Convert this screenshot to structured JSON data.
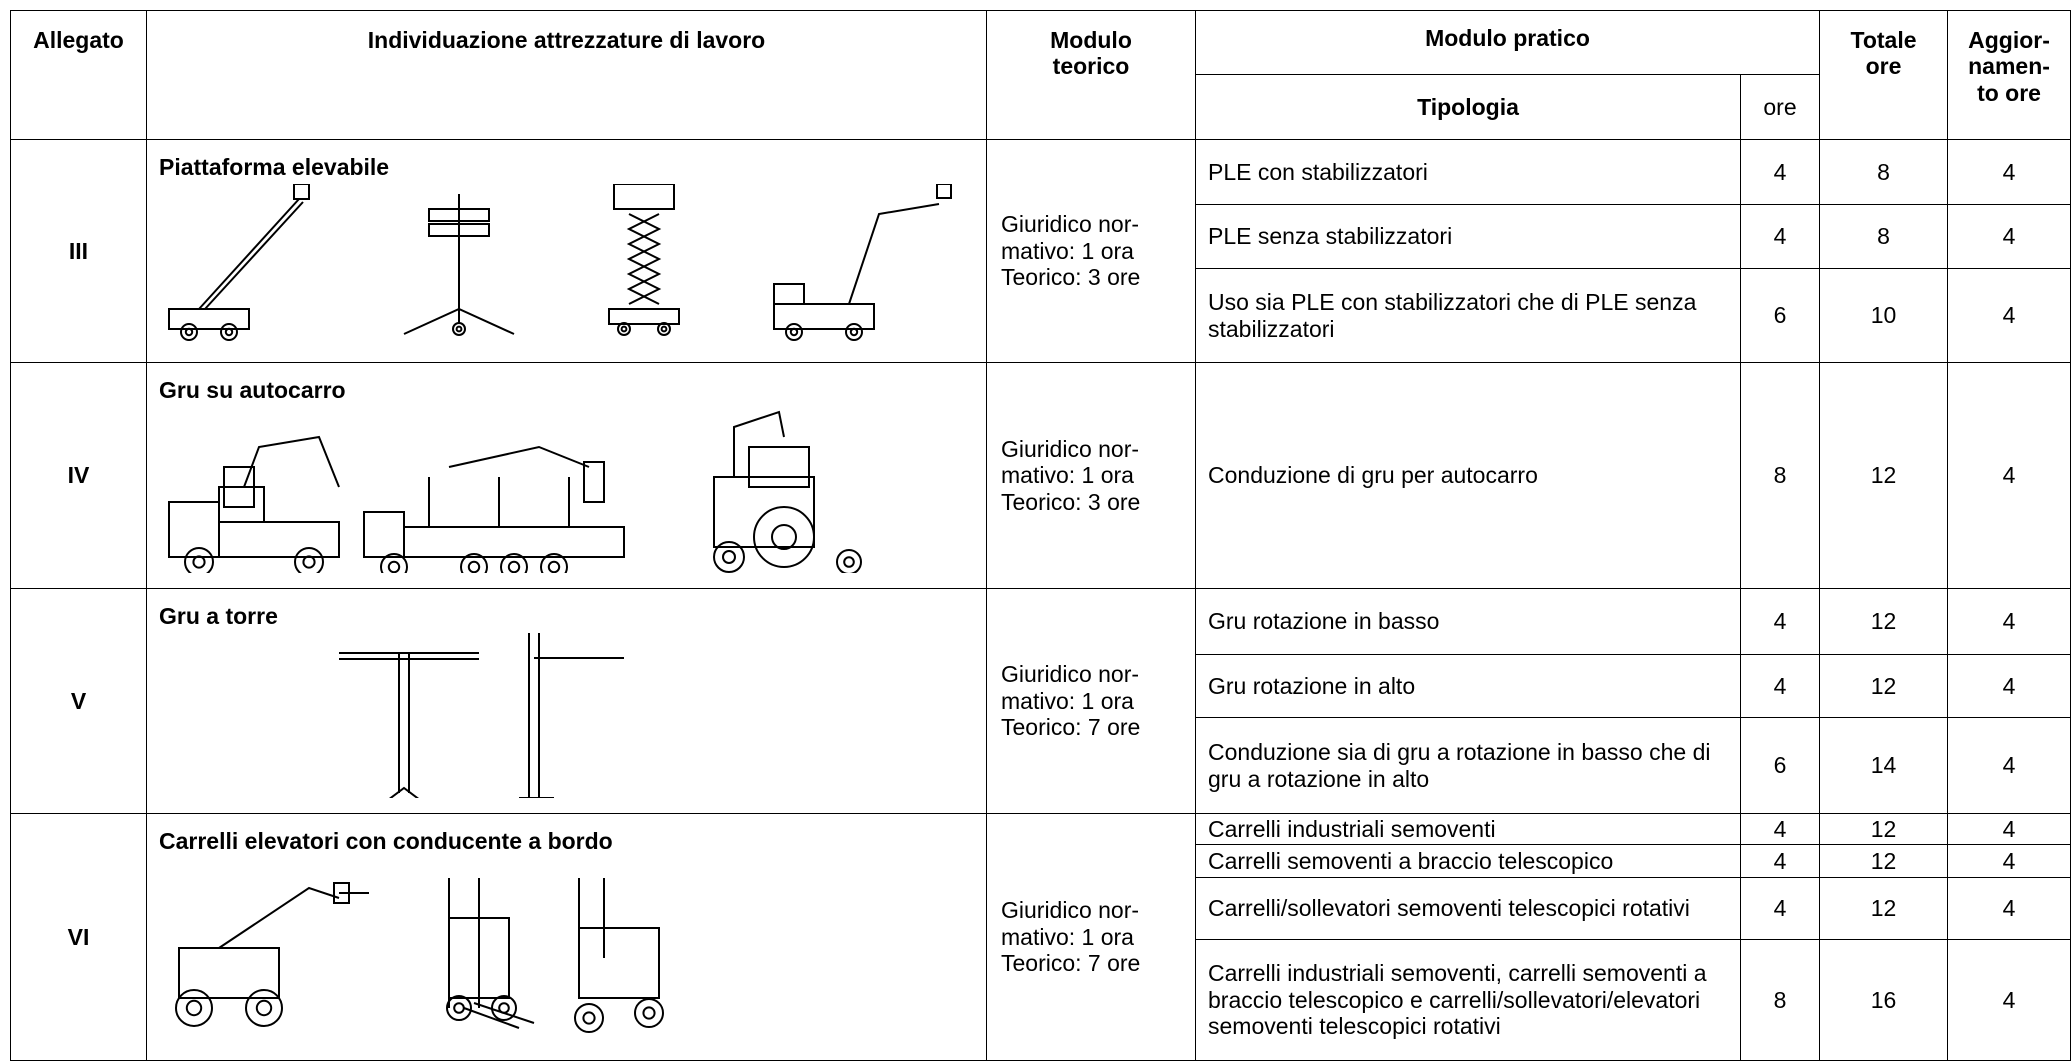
{
  "header": {
    "allegato": "Allegato",
    "individuazione": "Individuazione attrezzature di lavoro",
    "modulo_teorico": "Modulo teorico",
    "modulo_pratico": "Modulo pratico",
    "tipologia": "Tipologia",
    "ore": "ore",
    "totale_ore": "Totale ore",
    "aggiornamento": "Aggior-\nnamen-\nto ore"
  },
  "groups": [
    {
      "allegato": "III",
      "title": "Piattaforma elevabile",
      "teorico": "Giuridico nor-\nmativo: 1 ora\nTeorico: 3 ore",
      "rows": [
        {
          "tipologia": "PLE con stabilizzatori",
          "ore": 4,
          "totale": 8,
          "aggiornamento": 4
        },
        {
          "tipologia": "PLE senza stabilizzatori",
          "ore": 4,
          "totale": 8,
          "aggiornamento": 4
        },
        {
          "tipologia": "Uso sia PLE con stabilizzatori che di PLE senza stabilizzatori",
          "ore": 6,
          "totale": 10,
          "aggiornamento": 4
        }
      ]
    },
    {
      "allegato": "IV",
      "title": "Gru su autocarro",
      "teorico": "Giuridico nor-\nmativo: 1 ora\nTeorico: 3 ore",
      "rows": [
        {
          "tipologia": "Conduzione di gru per autocarro",
          "ore": 8,
          "totale": 12,
          "aggiornamento": 4
        }
      ]
    },
    {
      "allegato": "V",
      "title": "Gru a torre",
      "teorico": "Giuridico nor-\nmativo: 1 ora\nTeorico: 7 ore",
      "rows": [
        {
          "tipologia": "Gru rotazione in basso",
          "ore": 4,
          "totale": 12,
          "aggiornamento": 4
        },
        {
          "tipologia": "Gru rotazione in alto",
          "ore": 4,
          "totale": 12,
          "aggiornamento": 4
        },
        {
          "tipologia": "Conduzione sia di gru a rotazione in basso che di gru a rotazione in alto",
          "ore": 6,
          "totale": 14,
          "aggiornamento": 4
        }
      ]
    },
    {
      "allegato": "VI",
      "title": "Carrelli elevatori con conducente a bordo",
      "teorico": "Giuridico nor-\nmativo: 1 ora\nTeorico: 7 ore",
      "rows": [
        {
          "tipologia": "Carrelli industriali semoventi",
          "ore": 4,
          "totale": 12,
          "aggiornamento": 4
        },
        {
          "tipologia": "Carrelli semoventi a braccio telescopico",
          "ore": 4,
          "totale": 12,
          "aggiornamento": 4
        },
        {
          "tipologia": "Carrelli/sollevatori semoventi telescopici rotativi",
          "ore": 4,
          "totale": 12,
          "aggiornamento": 4
        },
        {
          "tipologia": "Carrelli industriali semoventi, carrelli semoventi a braccio telescopico e carrelli/sollevatori/elevatori semoventi telescopici rotativi",
          "ore": 8,
          "totale": 16,
          "aggiornamento": 4
        }
      ]
    }
  ]
}
